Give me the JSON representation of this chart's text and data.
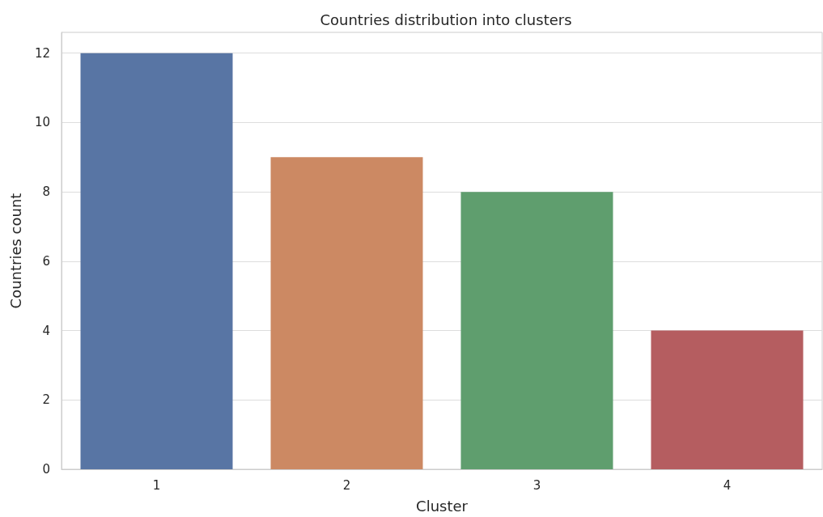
{
  "chart_data": {
    "type": "bar",
    "title": "Countries distribution into clusters",
    "xlabel": "Cluster",
    "ylabel": "Countries count",
    "categories": [
      "1",
      "2",
      "3",
      "4"
    ],
    "values": [
      12,
      9,
      8,
      4
    ],
    "colors": [
      "#5875a4",
      "#cc8963",
      "#5f9e6e",
      "#b55d60"
    ],
    "ylim": [
      0,
      12.6
    ],
    "yticks": [
      0,
      2,
      4,
      6,
      8,
      10,
      12
    ],
    "grid": "y"
  }
}
